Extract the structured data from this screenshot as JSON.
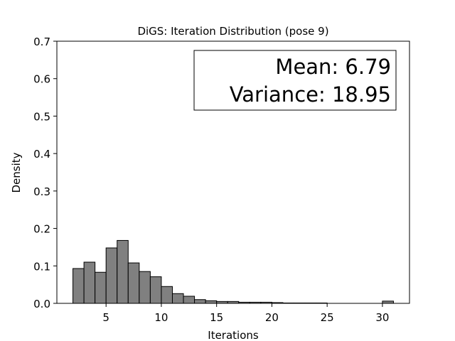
{
  "chart_data": {
    "type": "histogram",
    "title": "DiGS: Iteration Distribution (pose 9)",
    "xlabel": "Iterations",
    "ylabel": "Density",
    "xlim": [
      0.55,
      32.45
    ],
    "ylim": [
      0,
      0.7
    ],
    "xticks": [
      5,
      10,
      15,
      20,
      25,
      30
    ],
    "yticks": [
      0.0,
      0.1,
      0.2,
      0.3,
      0.4,
      0.5,
      0.6,
      0.7
    ],
    "ytick_labels": [
      "0.0",
      "0.1",
      "0.2",
      "0.3",
      "0.4",
      "0.5",
      "0.6",
      "0.7"
    ],
    "bar_color": "#808080",
    "edge_color": "#000000",
    "grid": false,
    "bins": [
      {
        "x0": 2.0,
        "x1": 3.0,
        "density": 0.093
      },
      {
        "x0": 3.0,
        "x1": 4.0,
        "density": 0.11
      },
      {
        "x0": 4.0,
        "x1": 5.0,
        "density": 0.083
      },
      {
        "x0": 5.0,
        "x1": 6.0,
        "density": 0.148
      },
      {
        "x0": 6.0,
        "x1": 7.0,
        "density": 0.168
      },
      {
        "x0": 7.0,
        "x1": 8.0,
        "density": 0.108
      },
      {
        "x0": 8.0,
        "x1": 9.0,
        "density": 0.085
      },
      {
        "x0": 9.0,
        "x1": 10.0,
        "density": 0.071
      },
      {
        "x0": 10.0,
        "x1": 11.0,
        "density": 0.045
      },
      {
        "x0": 11.0,
        "x1": 12.0,
        "density": 0.026
      },
      {
        "x0": 12.0,
        "x1": 13.0,
        "density": 0.019
      },
      {
        "x0": 13.0,
        "x1": 14.0,
        "density": 0.01
      },
      {
        "x0": 14.0,
        "x1": 15.0,
        "density": 0.007
      },
      {
        "x0": 15.0,
        "x1": 16.0,
        "density": 0.005
      },
      {
        "x0": 16.0,
        "x1": 17.0,
        "density": 0.005
      },
      {
        "x0": 17.0,
        "x1": 18.0,
        "density": 0.003
      },
      {
        "x0": 18.0,
        "x1": 19.0,
        "density": 0.003
      },
      {
        "x0": 19.0,
        "x1": 20.0,
        "density": 0.003
      },
      {
        "x0": 20.0,
        "x1": 21.0,
        "density": 0.002
      },
      {
        "x0": 21.0,
        "x1": 22.0,
        "density": 0.001
      },
      {
        "x0": 22.0,
        "x1": 23.0,
        "density": 0.001
      },
      {
        "x0": 23.0,
        "x1": 24.0,
        "density": 0.001
      },
      {
        "x0": 24.0,
        "x1": 25.0,
        "density": 0.001
      },
      {
        "x0": 25.0,
        "x1": 26.0,
        "density": 0.0
      },
      {
        "x0": 26.0,
        "x1": 27.0,
        "density": 0.0
      },
      {
        "x0": 27.0,
        "x1": 28.0,
        "density": 0.0
      },
      {
        "x0": 28.0,
        "x1": 29.0,
        "density": 0.0
      },
      {
        "x0": 29.0,
        "x1": 30.0,
        "density": 0.0
      },
      {
        "x0": 30.0,
        "x1": 31.0,
        "density": 0.006
      }
    ],
    "stats_box": {
      "mean_label": "Mean: 6.79",
      "variance_label": "Variance: 18.95",
      "placement": "top-right"
    }
  }
}
